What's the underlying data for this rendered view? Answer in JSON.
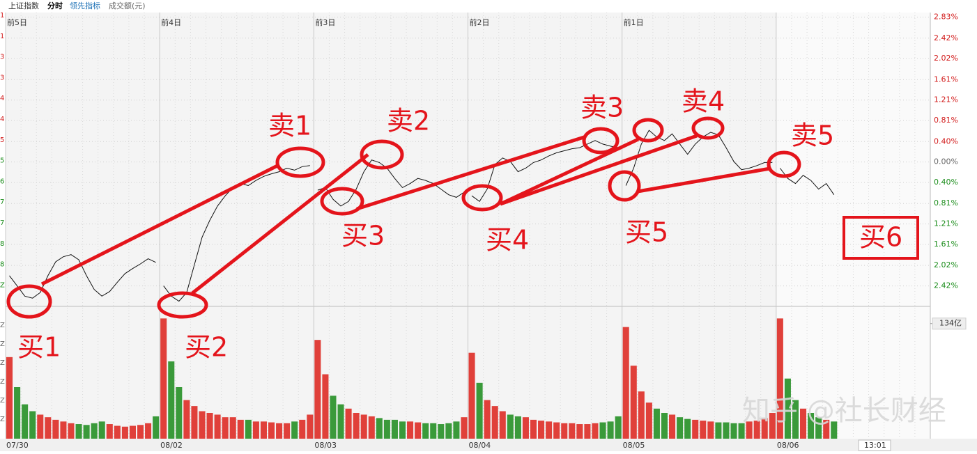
{
  "header": {
    "index": "上证指数",
    "mode": "分时",
    "indicator": "领先指标",
    "amount": "成交额(元)"
  },
  "chart_data": {
    "type": "line",
    "ylim": [
      -2.82,
      2.92
    ],
    "yticks": [
      {
        "value": 2.83,
        "label": "2.83%"
      },
      {
        "value": 2.42,
        "label": "2.42%"
      },
      {
        "value": 2.02,
        "label": "2.02%"
      },
      {
        "value": 1.61,
        "label": "1.61%"
      },
      {
        "value": 1.21,
        "label": "1.21%"
      },
      {
        "value": 0.81,
        "label": "0.81%"
      },
      {
        "value": 0.4,
        "label": "0.40%"
      },
      {
        "value": 0,
        "label": "0.00%"
      },
      {
        "value": -0.4,
        "label": "0.40%"
      },
      {
        "value": -0.81,
        "label": "0.81%"
      },
      {
        "value": -1.21,
        "label": "1.21%"
      },
      {
        "value": -1.61,
        "label": "1.61%"
      },
      {
        "value": -2.02,
        "label": "2.02%"
      },
      {
        "value": -2.42,
        "label": "2.42%"
      }
    ],
    "left_axis": [
      "1",
      "1",
      "3",
      "3",
      "4",
      "4",
      "5",
      "5",
      "6",
      "7",
      "7",
      "8",
      "8",
      "Z"
    ],
    "volume_left_axis": [
      "Z",
      "Z",
      "Z",
      "Z",
      "Z",
      "Z"
    ],
    "volume_ylim": [
      0,
      150
    ],
    "volume_yticks": [
      {
        "value": 134,
        "label": "134亿"
      }
    ],
    "time_label": "13:01",
    "days": [
      {
        "label": "前5日",
        "date": "07/30",
        "values": [
          -2.22,
          -2.42,
          -2.62,
          -2.66,
          -2.55,
          -2.22,
          -1.95,
          -1.85,
          -1.81,
          -1.91,
          -2.22,
          -2.49,
          -2.62,
          -2.53,
          -2.35,
          -2.18,
          -2.08,
          -1.99,
          -1.89,
          -1.96
        ],
        "volume": [
          95,
          60,
          40,
          32,
          28,
          25,
          22,
          20,
          18,
          17,
          16,
          18,
          20,
          17,
          15,
          14,
          15,
          16,
          18,
          26
        ]
      },
      {
        "label": "前4日",
        "date": "08/02",
        "values": [
          -2.42,
          -2.62,
          -2.72,
          -2.55,
          -2.01,
          -1.47,
          -1.14,
          -0.86,
          -0.66,
          -0.5,
          -0.42,
          -0.46,
          -0.36,
          -0.28,
          -0.23,
          -0.19,
          -0.12,
          -0.16,
          -0.09,
          -0.07
        ],
        "volume": [
          140,
          90,
          60,
          45,
          38,
          32,
          30,
          28,
          25,
          25,
          22,
          22,
          20,
          20,
          19,
          18,
          18,
          20,
          22,
          28
        ]
      },
      {
        "label": "前3日",
        "date": "08/03",
        "values": [
          -0.55,
          -0.5,
          -0.73,
          -0.86,
          -0.77,
          -0.53,
          -0.19,
          0.04,
          -0.01,
          -0.12,
          -0.32,
          -0.5,
          -0.42,
          -0.32,
          -0.36,
          -0.42,
          -0.53,
          -0.64,
          -0.69,
          -0.59
        ],
        "volume": [
          115,
          75,
          50,
          40,
          35,
          30,
          28,
          26,
          24,
          22,
          22,
          20,
          20,
          19,
          18,
          18,
          17,
          18,
          20,
          25
        ]
      },
      {
        "label": "前2日",
        "date": "08/04",
        "values": [
          -0.66,
          -0.77,
          -0.53,
          -0.05,
          0.08,
          0.01,
          -0.19,
          -0.12,
          -0.01,
          0.04,
          0.12,
          0.18,
          0.22,
          0.26,
          0.28,
          0.35,
          0.42,
          0.35,
          0.31,
          0.28
        ],
        "volume": [
          100,
          65,
          45,
          38,
          32,
          28,
          26,
          25,
          22,
          21,
          20,
          19,
          18,
          18,
          17,
          17,
          18,
          19,
          20,
          26
        ]
      },
      {
        "label": "前1日",
        "date": "08/05",
        "values": [
          -0.46,
          -0.12,
          0.35,
          0.62,
          0.49,
          0.42,
          0.55,
          0.35,
          0.15,
          0.35,
          0.49,
          0.58,
          0.53,
          0.28,
          0.01,
          -0.15,
          -0.12,
          -0.07,
          -0.01,
          -0.01
        ],
        "volume": [
          130,
          85,
          55,
          42,
          35,
          30,
          28,
          25,
          23,
          22,
          21,
          20,
          19,
          19,
          18,
          18,
          20,
          21,
          24,
          30
        ]
      },
      {
        "label": null,
        "date": "08/06",
        "values": [
          -0.12,
          -0.32,
          -0.42,
          -0.26,
          -0.36,
          -0.53,
          -0.42,
          -0.64,
          null,
          null,
          null,
          null,
          null,
          null,
          null,
          null,
          null,
          null,
          null,
          null
        ],
        "volume": [
          140,
          70,
          45,
          35,
          30,
          25,
          22,
          20,
          null,
          null,
          null,
          null,
          null,
          null,
          null,
          null,
          null,
          null,
          null,
          null
        ]
      }
    ]
  },
  "annotations": {
    "sell": [
      "卖1",
      "卖2",
      "卖3",
      "卖4",
      "卖5"
    ],
    "buy": [
      "买1",
      "买2",
      "买3",
      "买4",
      "买5",
      "买6"
    ]
  },
  "watermark": "知乎 @社长财经"
}
